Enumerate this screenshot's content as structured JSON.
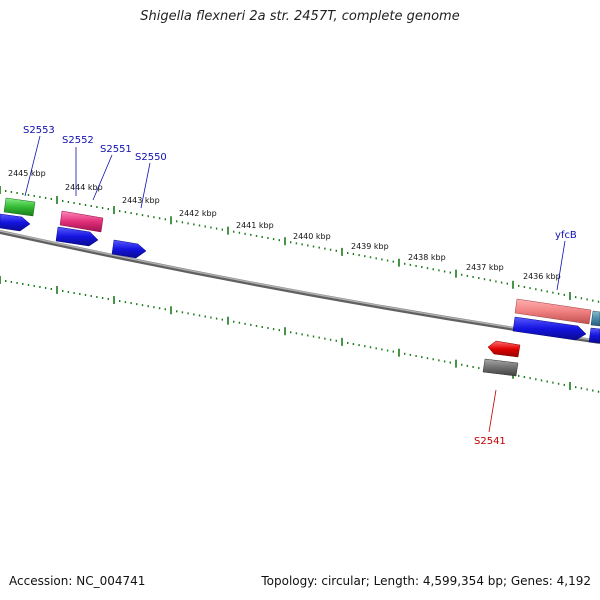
{
  "title": "Shigella flexneri 2a str. 2457T, complete genome",
  "footer": {
    "accession": "Accession: NC_004741",
    "summary": "Topology: circular; Length: 4,599,354 bp; Genes: 4,192"
  },
  "scale_labels": [
    "2445 kbp",
    "2444 kbp",
    "2443 kbp",
    "2442 kbp",
    "2441 kbp",
    "2440 kbp",
    "2439 kbp",
    "2438 kbp",
    "2437 kbp",
    "2436 kbp"
  ],
  "gene_labels": {
    "s2553": "S2553",
    "s2552": "S2552",
    "s2551": "S2551",
    "s2550": "S2550",
    "yfcb": "yfcB",
    "s2541": "S2541"
  },
  "colors": {
    "tick": "#1a7a1a",
    "backbone": "#808080",
    "cds_blue": "#1414e0",
    "cds_green": "#33bb33",
    "cds_magenta": "#e0307a",
    "cds_salmon": "#f08080",
    "cds_red": "#e00000",
    "cds_gray": "#707070",
    "cds_teal": "#4a8aaa"
  }
}
